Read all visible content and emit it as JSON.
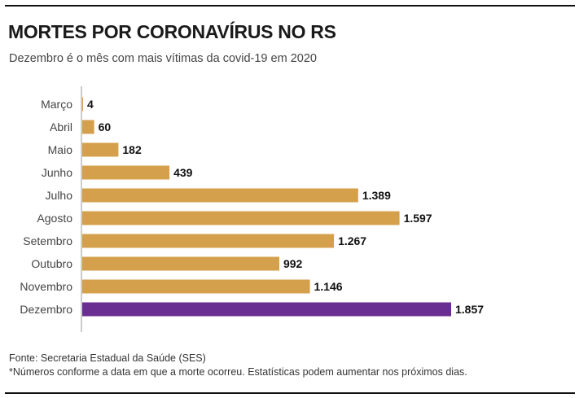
{
  "header": {
    "title": "MORTES POR CORONAVÍRUS NO RS",
    "subtitle": "Dezembro é o mês com mais vítimas da covid-19 em 2020"
  },
  "footer": {
    "source": "Fonte: Secretaria Estadual da Saúde (SES)",
    "note": "*Números conforme a data em que a morte ocorreu. Estatísticas podem aumentar nos próximos dias."
  },
  "colors": {
    "bar": "#d4a04c",
    "highlight": "#6a2d91",
    "axis": "#999999"
  },
  "chart_data": {
    "type": "bar",
    "orientation": "horizontal",
    "categories": [
      "Março",
      "Abril",
      "Maio",
      "Junho",
      "Julho",
      "Agosto",
      "Setembro",
      "Outubro",
      "Novembro",
      "Dezembro"
    ],
    "values": [
      4,
      60,
      182,
      439,
      1389,
      1597,
      1267,
      992,
      1146,
      1857
    ],
    "value_labels": [
      "4",
      "60",
      "182",
      "439",
      "1.389",
      "1.597",
      "1.267",
      "992",
      "1.146",
      "1.857"
    ],
    "highlight_category": "Dezembro",
    "xlim": [
      0,
      1857
    ],
    "grid": false,
    "legend": "none"
  }
}
